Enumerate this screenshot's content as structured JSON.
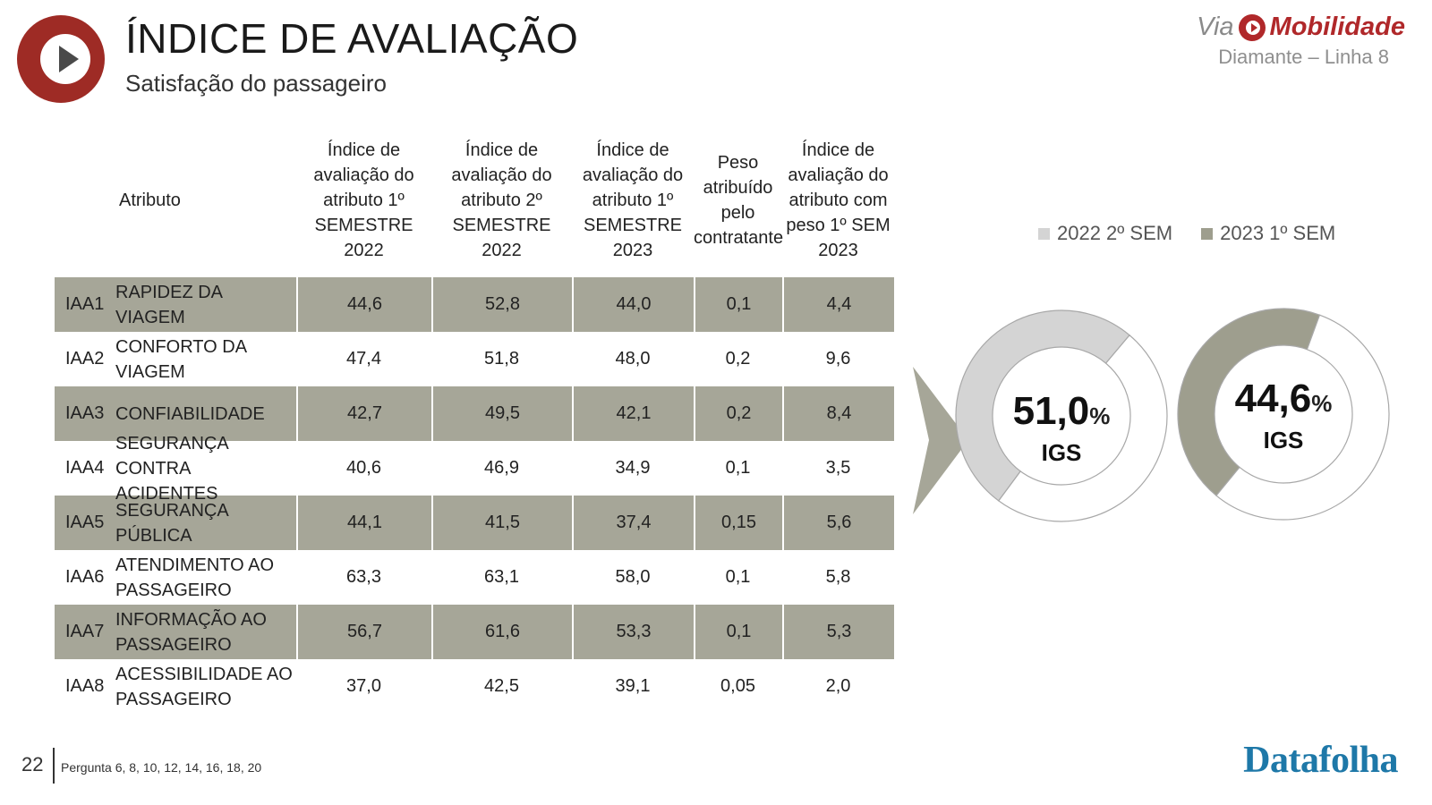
{
  "header": {
    "title": "ÍNDICE DE AVALIAÇÃO",
    "subtitle": "Satisfação do passageiro"
  },
  "brand": {
    "via": "Via",
    "mobilidade": "Mobilidade",
    "line": "Diamante – Linha 8",
    "color": "#b0282a"
  },
  "table": {
    "headers": {
      "attribute": "Atributo",
      "col1": "Índice de avaliação do atributo 1º SEMESTRE 2022",
      "col2": "Índice de avaliação do atributo 2º SEMESTRE 2022",
      "col3": "Índice de avaliação do atributo 1º SEMESTRE 2023",
      "col4": "Peso atribuído pelo contratante",
      "col5": "Índice de avaliação do atributo com peso 1º SEM 2023"
    },
    "rows": [
      {
        "code": "IAA1",
        "name": "RAPIDEZ DA VIAGEM",
        "s1_2022": "44,6",
        "s2_2022": "52,8",
        "s1_2023": "44,0",
        "peso": "0,1",
        "com_peso": "4,4"
      },
      {
        "code": "IAA2",
        "name": "CONFORTO DA VIAGEM",
        "s1_2022": "47,4",
        "s2_2022": "51,8",
        "s1_2023": "48,0",
        "peso": "0,2",
        "com_peso": "9,6"
      },
      {
        "code": "IAA3",
        "name": "CONFIABILIDADE",
        "s1_2022": "42,7",
        "s2_2022": "49,5",
        "s1_2023": "42,1",
        "peso": "0,2",
        "com_peso": "8,4"
      },
      {
        "code": "IAA4",
        "name": "SEGURANÇA CONTRA ACIDENTES",
        "s1_2022": "40,6",
        "s2_2022": "46,9",
        "s1_2023": "34,9",
        "peso": "0,1",
        "com_peso": "3,5"
      },
      {
        "code": "IAA5",
        "name": "SEGURANÇA PÚBLICA",
        "s1_2022": "44,1",
        "s2_2022": "41,5",
        "s1_2023": "37,4",
        "peso": "0,15",
        "com_peso": "5,6"
      },
      {
        "code": "IAA6",
        "name": "ATENDIMENTO AO PASSAGEIRO",
        "s1_2022": "63,3",
        "s2_2022": "63,1",
        "s1_2023": "58,0",
        "peso": "0,1",
        "com_peso": "5,8"
      },
      {
        "code": "IAA7",
        "name": "INFORMAÇÃO AO PASSAGEIRO",
        "s1_2022": "56,7",
        "s2_2022": "61,6",
        "s1_2023": "53,3",
        "peso": "0,1",
        "com_peso": "5,3"
      },
      {
        "code": "IAA8",
        "name": "ACESSIBILIDADE AO PASSAGEIRO",
        "s1_2022": "37,0",
        "s2_2022": "42,5",
        "s1_2023": "39,1",
        "peso": "0,05",
        "com_peso": "2,0"
      }
    ]
  },
  "chart_data": {
    "type": "pie",
    "legend": [
      {
        "label": "2022 2º SEM",
        "color": "#d4d4d4"
      },
      {
        "label": "2023 1º SEM",
        "color": "#9e9e8e"
      }
    ],
    "donuts": [
      {
        "series": "2022 2º SEM",
        "value": 51.0,
        "value_label": "51,0",
        "unit": "%",
        "label": "IGS",
        "color": "#d4d4d4"
      },
      {
        "series": "2023 1º SEM",
        "value": 44.6,
        "value_label": "44,6",
        "unit": "%",
        "label": "IGS",
        "color": "#9e9e8e"
      }
    ]
  },
  "footer": {
    "page_number": "22",
    "note": "Pergunta 6, 8, 10, 12, 14, 16, 18, 20",
    "logo": "Datafolha"
  }
}
